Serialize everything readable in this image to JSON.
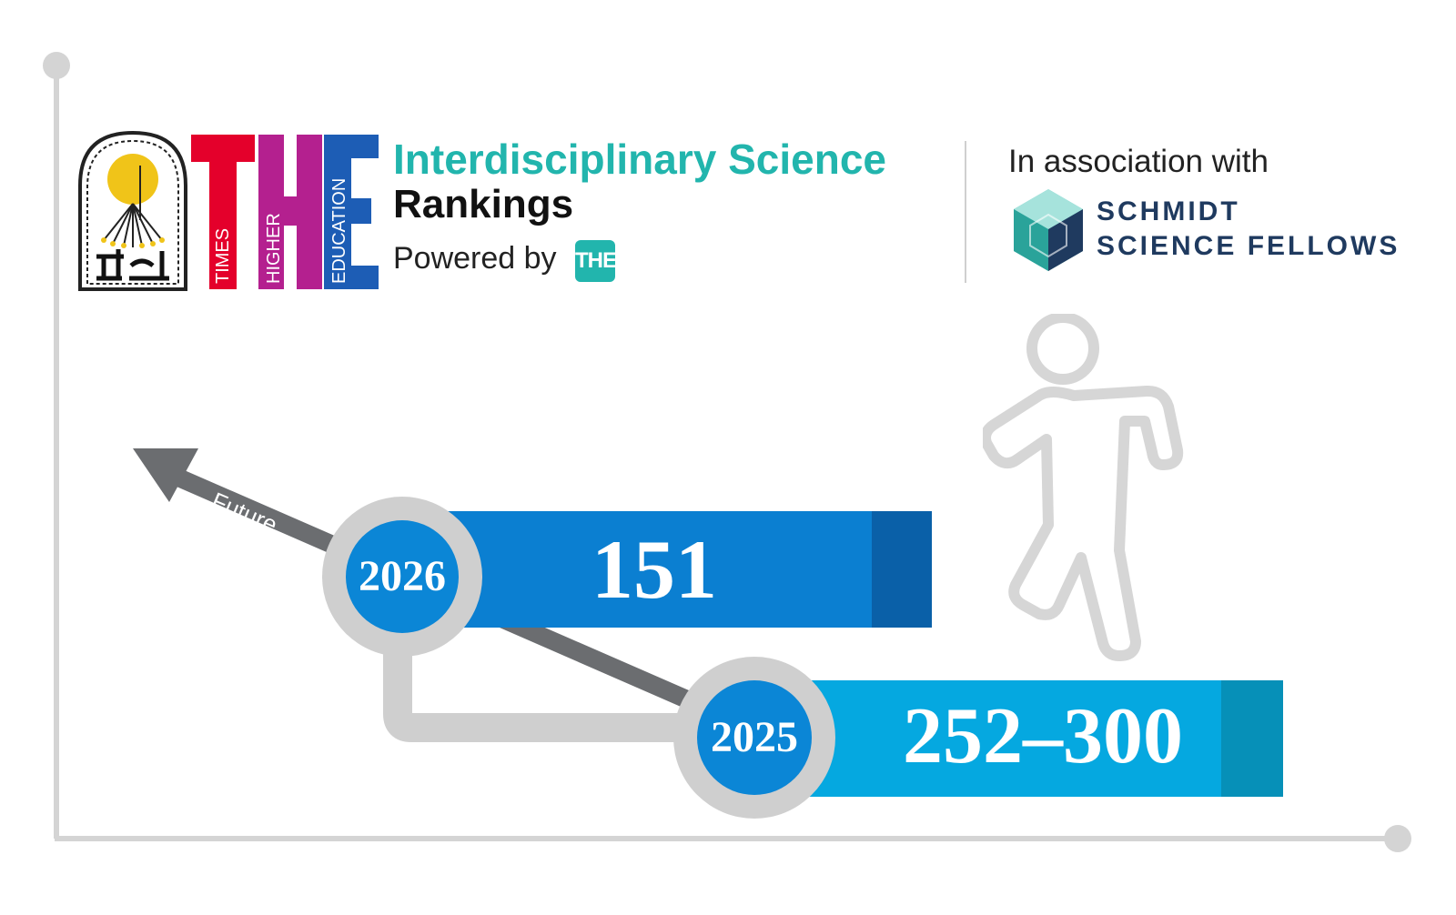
{
  "header": {
    "the_letters": [
      "T",
      "H",
      "E"
    ],
    "the_words": [
      "TIMES",
      "HIGHER",
      "EDUCATION"
    ],
    "title_line1": "Interdisciplinary Science",
    "title_line2": "Rankings",
    "powered_by": "Powered by",
    "powered_badge": "THE",
    "association": "In association with",
    "partner_line1": "SCHMIDT",
    "partner_line2": "SCIENCE FELLOWS"
  },
  "timeline": {
    "arrow_label": "Future",
    "items": [
      {
        "year": "2026",
        "rank": "151"
      },
      {
        "year": "2025",
        "rank": "252–300"
      }
    ]
  },
  "colors": {
    "the_t": "#e4002b",
    "the_h": "#b4208f",
    "the_e": "#1d5db5",
    "teal": "#22b5ad",
    "bar_2026": "#0b7fd1",
    "bar_2026_end": "#0a60a8",
    "bar_2025": "#05a8e0",
    "bar_2025_end": "#0690b8",
    "circle": "#0b86d6",
    "gray": "#cfcfcf",
    "arrow": "#6b6d70"
  },
  "icons": [
    "university-seal-icon",
    "hexagon-cube-logo-icon",
    "walking-person-icon",
    "arrow-up-left-icon"
  ]
}
